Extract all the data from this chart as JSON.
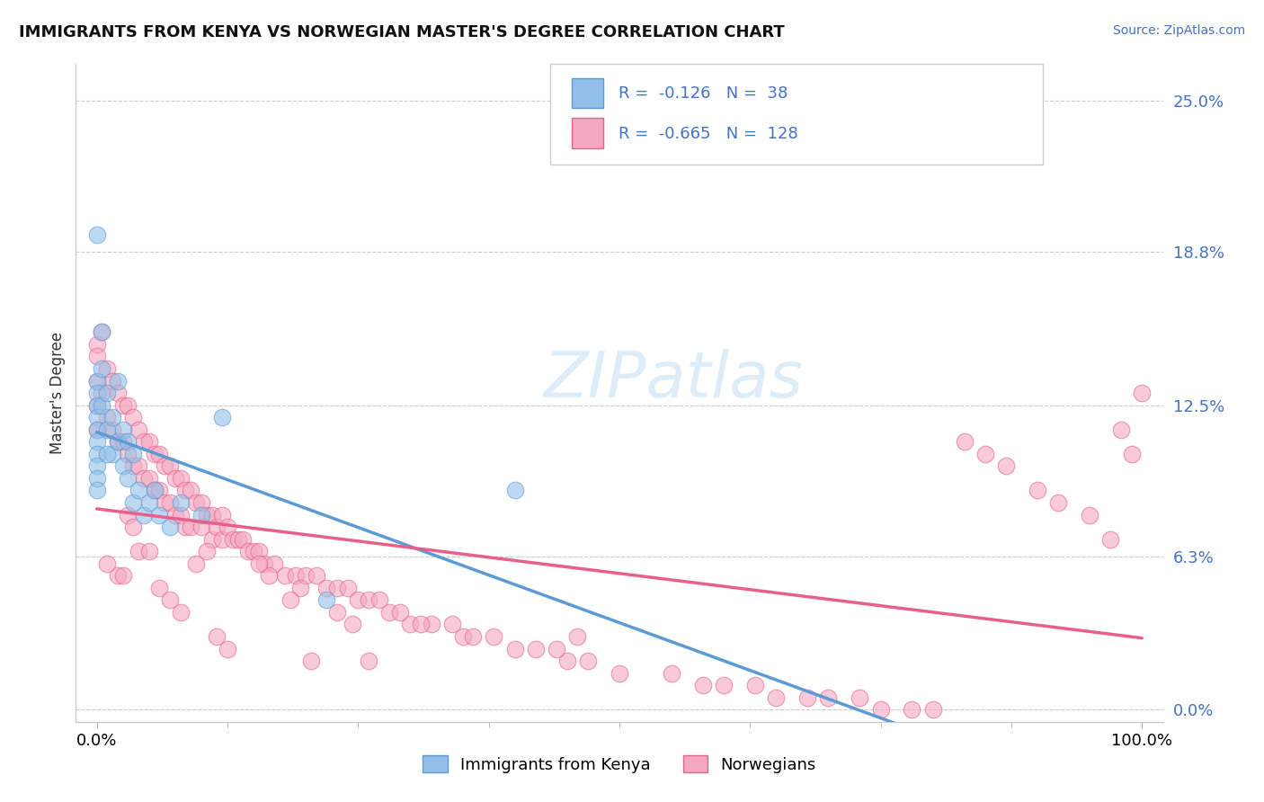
{
  "title": "IMMIGRANTS FROM KENYA VS NORWEGIAN MASTER'S DEGREE CORRELATION CHART",
  "source": "Source: ZipAtlas.com",
  "ylabel": "Master's Degree",
  "watermark": "ZIPatlas",
  "ytick_labels": [
    "0.0%",
    "6.3%",
    "12.5%",
    "18.8%",
    "25.0%"
  ],
  "ytick_values": [
    0.0,
    6.3,
    12.5,
    18.8,
    25.0
  ],
  "xtick_labels": [
    "0.0%",
    "100.0%"
  ],
  "xtick_values": [
    0.0,
    100.0
  ],
  "kenya_color": "#92C0E8",
  "kenya_color_dark": "#5B9BD5",
  "norway_color": "#F4A7C0",
  "norway_color_dark": "#E8608A",
  "kenya_R": -0.126,
  "kenya_N": 38,
  "norway_R": -0.665,
  "norway_N": 128,
  "legend_label_kenya": "Immigrants from Kenya",
  "legend_label_norway": "Norwegians",
  "kenya_points_x": [
    0.0,
    0.0,
    0.0,
    0.0,
    0.0,
    0.0,
    0.0,
    0.0,
    0.0,
    0.0,
    0.0,
    0.5,
    0.5,
    1.0,
    1.0,
    1.5,
    1.5,
    2.0,
    2.0,
    2.5,
    2.5,
    3.0,
    3.0,
    3.5,
    3.5,
    4.0,
    4.5,
    5.0,
    5.5,
    6.0,
    7.0,
    8.0,
    10.0,
    12.0,
    22.0,
    40.0,
    0.5,
    1.0
  ],
  "kenya_points_y": [
    13.5,
    13.0,
    12.5,
    12.0,
    11.5,
    11.0,
    10.5,
    10.0,
    9.5,
    9.0,
    19.5,
    14.0,
    12.5,
    13.0,
    11.5,
    12.0,
    10.5,
    11.0,
    13.5,
    10.0,
    11.5,
    11.0,
    9.5,
    10.5,
    8.5,
    9.0,
    8.0,
    8.5,
    9.0,
    8.0,
    7.5,
    8.5,
    8.0,
    12.0,
    4.5,
    9.0,
    15.5,
    10.5
  ],
  "norway_points_x": [
    0.0,
    0.0,
    0.0,
    0.0,
    0.0,
    0.5,
    0.5,
    1.0,
    1.0,
    1.5,
    1.5,
    2.0,
    2.0,
    2.5,
    2.5,
    3.0,
    3.0,
    3.5,
    3.5,
    4.0,
    4.0,
    4.5,
    4.5,
    5.0,
    5.0,
    5.5,
    5.5,
    6.0,
    6.0,
    6.5,
    6.5,
    7.0,
    7.0,
    7.5,
    7.5,
    8.0,
    8.0,
    8.5,
    8.5,
    9.0,
    9.0,
    9.5,
    10.0,
    10.0,
    10.5,
    11.0,
    11.0,
    11.5,
    12.0,
    12.0,
    12.5,
    13.0,
    13.5,
    14.0,
    14.5,
    15.0,
    15.5,
    16.0,
    17.0,
    18.0,
    19.0,
    20.0,
    21.0,
    22.0,
    23.0,
    24.0,
    25.0,
    26.0,
    27.0,
    28.0,
    30.0,
    32.0,
    35.0,
    38.0,
    40.0,
    42.0,
    45.0,
    47.0,
    50.0,
    55.0,
    58.0,
    60.0,
    63.0,
    65.0,
    68.0,
    70.0,
    73.0,
    75.0,
    78.0,
    80.0,
    83.0,
    85.0,
    87.0,
    90.0,
    92.0,
    95.0,
    97.0,
    98.0,
    99.0,
    100.0,
    3.0,
    3.5,
    4.0,
    5.0,
    6.0,
    7.0,
    8.0,
    2.0,
    2.5,
    1.0,
    9.5,
    10.5,
    11.5,
    12.5,
    23.0,
    24.5,
    26.0,
    20.5,
    19.5,
    18.5,
    16.5,
    15.5,
    34.0,
    36.0,
    29.0,
    31.0,
    44.0,
    46.0
  ],
  "norway_points_y": [
    15.0,
    14.5,
    13.5,
    12.5,
    11.5,
    15.5,
    13.0,
    14.0,
    12.0,
    13.5,
    11.5,
    13.0,
    11.0,
    12.5,
    11.0,
    12.5,
    10.5,
    12.0,
    10.0,
    11.5,
    10.0,
    11.0,
    9.5,
    11.0,
    9.5,
    10.5,
    9.0,
    10.5,
    9.0,
    10.0,
    8.5,
    10.0,
    8.5,
    9.5,
    8.0,
    9.5,
    8.0,
    9.0,
    7.5,
    9.0,
    7.5,
    8.5,
    8.5,
    7.5,
    8.0,
    8.0,
    7.0,
    7.5,
    8.0,
    7.0,
    7.5,
    7.0,
    7.0,
    7.0,
    6.5,
    6.5,
    6.5,
    6.0,
    6.0,
    5.5,
    5.5,
    5.5,
    5.5,
    5.0,
    5.0,
    5.0,
    4.5,
    4.5,
    4.5,
    4.0,
    3.5,
    3.5,
    3.0,
    3.0,
    2.5,
    2.5,
    2.0,
    2.0,
    1.5,
    1.5,
    1.0,
    1.0,
    1.0,
    0.5,
    0.5,
    0.5,
    0.5,
    0.0,
    0.0,
    0.0,
    11.0,
    10.5,
    10.0,
    9.0,
    8.5,
    8.0,
    7.0,
    11.5,
    10.5,
    13.0,
    8.0,
    7.5,
    6.5,
    6.5,
    5.0,
    4.5,
    4.0,
    5.5,
    5.5,
    6.0,
    6.0,
    6.5,
    3.0,
    2.5,
    4.0,
    3.5,
    2.0,
    2.0,
    5.0,
    4.5,
    5.5,
    6.0,
    3.5,
    3.0,
    4.0,
    3.5,
    2.5,
    3.0
  ],
  "xlim": [
    -2,
    102
  ],
  "ylim": [
    -0.5,
    26.5
  ],
  "figsize": [
    14.06,
    8.92
  ],
  "dpi": 100
}
